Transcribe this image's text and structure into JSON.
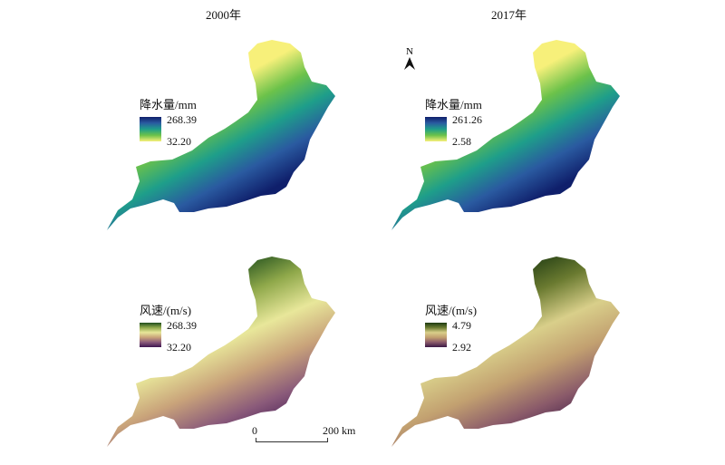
{
  "columns": [
    {
      "title": "2000年"
    },
    {
      "title": "2017年"
    }
  ],
  "panels": [
    {
      "year": "2000年",
      "variable": "降水量",
      "legend_title": "降水量/mm",
      "max": "268.39",
      "min": "32.20",
      "colors": [
        "#f7f07a",
        "#6cc24a",
        "#1e9e8a",
        "#2a5aa0",
        "#0f1f6b"
      ]
    },
    {
      "year": "2017年",
      "variable": "降水量",
      "legend_title": "降水量/mm",
      "max": "261.26",
      "min": "2.58",
      "colors": [
        "#f7f07a",
        "#6cc24a",
        "#1e9e8a",
        "#2a5aa0",
        "#0f1f6b"
      ]
    },
    {
      "year": "2000年",
      "variable": "风速",
      "legend_title": "风速/(m/s)",
      "max": "268.39",
      "min": "32.20",
      "colors": [
        "#1e4d1c",
        "#8fa84a",
        "#e8e79a",
        "#c9a37a",
        "#8a5a7a",
        "#3d1550"
      ]
    },
    {
      "year": "2017年",
      "variable": "风速",
      "legend_title": "风速/(m/s)",
      "max": "4.79",
      "min": "2.92",
      "colors": [
        "#1e3a12",
        "#6a7a30",
        "#d9cf8a",
        "#c2a070",
        "#8a5a6a",
        "#3a1845"
      ]
    }
  ],
  "north_arrow": {
    "label": "N",
    "icon": "north-arrow-icon"
  },
  "scale_bar": {
    "start": "0",
    "end": "200 km"
  }
}
